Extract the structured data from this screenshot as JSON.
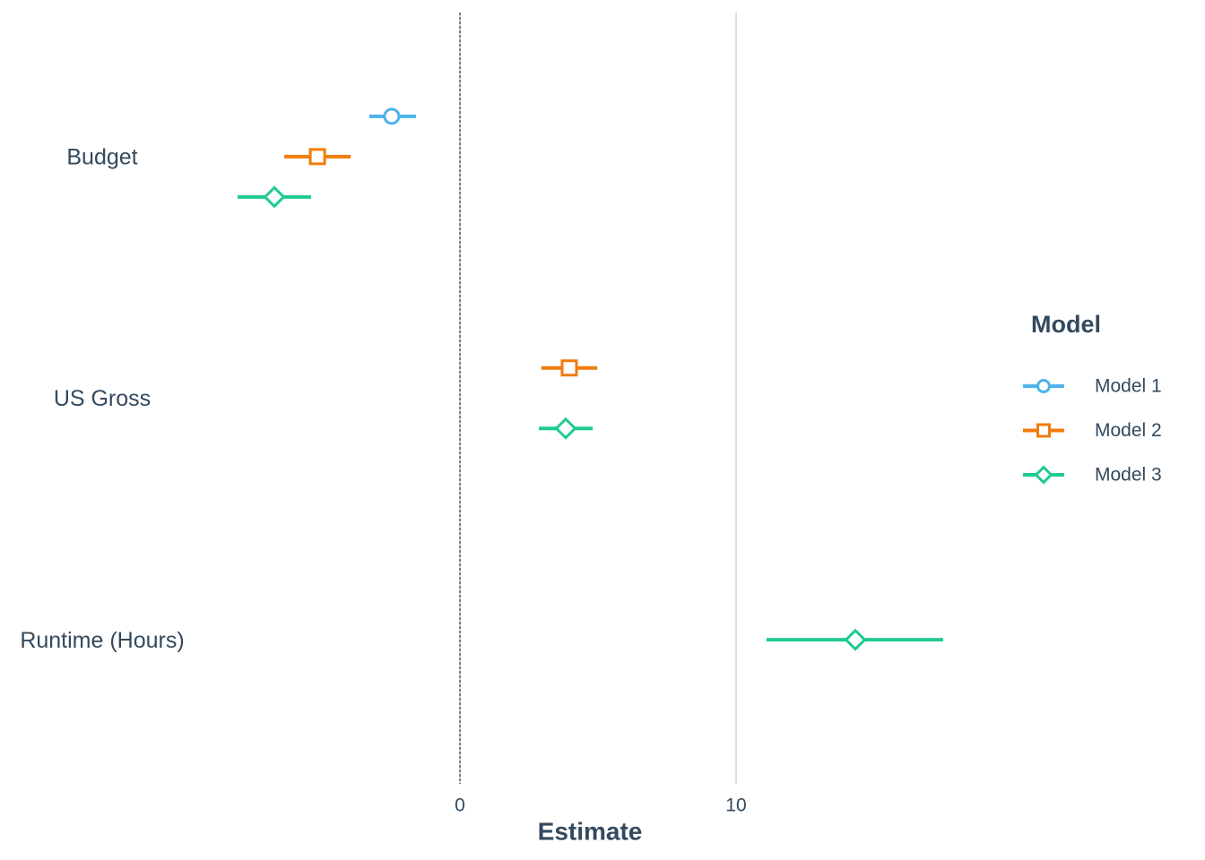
{
  "chart_data": {
    "type": "coefplot",
    "categories": [
      "Budget",
      "US Gross",
      "Runtime (Hours)"
    ],
    "series": [
      {
        "name": "Model 1",
        "color": "#4db3ea",
        "marker": "circle",
        "values": [
          -2.47,
          null,
          null
        ],
        "lower": [
          -3.28,
          null,
          null
        ],
        "upper": [
          -1.59,
          null,
          null
        ]
      },
      {
        "name": "Model 2",
        "color": "#f07c0c",
        "marker": "square",
        "values": [
          -5.16,
          3.96,
          null
        ],
        "lower": [
          -6.36,
          2.95,
          null
        ],
        "upper": [
          -3.96,
          4.97,
          null
        ]
      },
      {
        "name": "Model 3",
        "color": "#1fcb90",
        "marker": "diamond",
        "values": [
          -6.72,
          3.83,
          14.32
        ],
        "lower": [
          -8.05,
          2.86,
          11.1
        ],
        "upper": [
          -5.39,
          4.81,
          17.5
        ]
      }
    ],
    "xlabel": "Estimate",
    "xlim": [
      -9,
      19.4
    ],
    "xticks": [
      0,
      10
    ],
    "grid": true,
    "reference_line": 0,
    "legend_title": "Model",
    "legend_position": "right"
  }
}
